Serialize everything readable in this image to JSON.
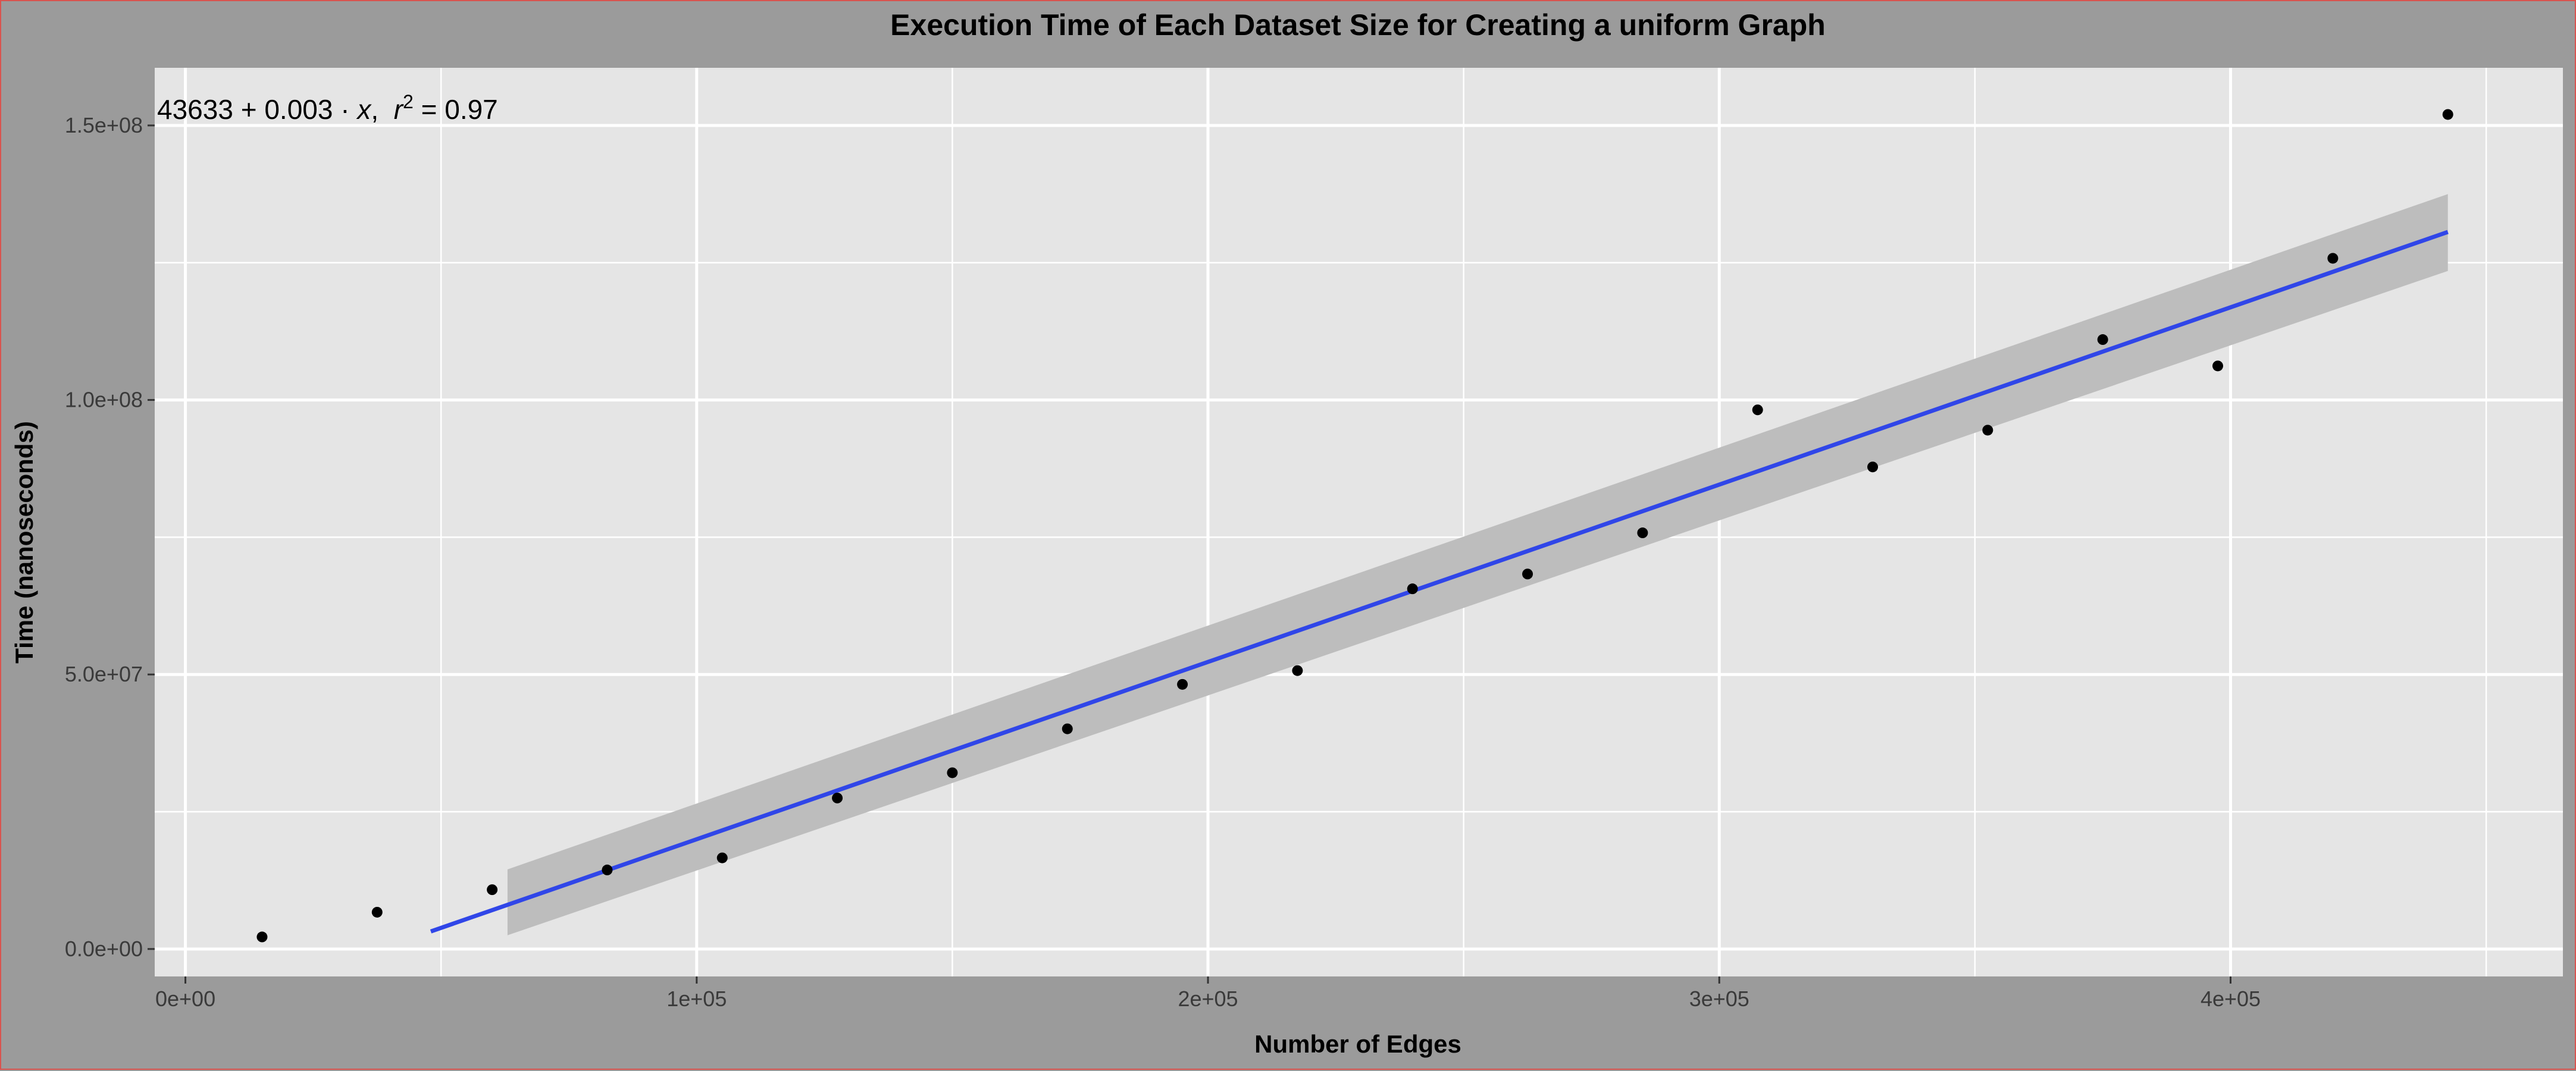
{
  "chart_data": {
    "type": "scatter",
    "title": "Execution Time of Each Dataset Size for Creating a uniform Graph",
    "xlabel": "Number of Edges",
    "ylabel": "Time (nanoseconds)",
    "xlim": [
      -6000,
      465000
    ],
    "ylim": [
      -5000000,
      160500000
    ],
    "x_ticks": [
      {
        "value": 0,
        "label": "0e+00"
      },
      {
        "value": 100000,
        "label": "1e+05"
      },
      {
        "value": 200000,
        "label": "2e+05"
      },
      {
        "value": 300000,
        "label": "3e+05"
      },
      {
        "value": 400000,
        "label": "4e+05"
      }
    ],
    "x_minor_ticks": [
      50000,
      150000,
      250000,
      350000,
      450000
    ],
    "y_ticks": [
      {
        "value": 0,
        "label": "0.0e+00"
      },
      {
        "value": 50000000,
        "label": "5.0e+07"
      },
      {
        "value": 100000000,
        "label": "1.0e+08"
      },
      {
        "value": 150000000,
        "label": "1.5e+08"
      }
    ],
    "y_minor_ticks": [
      25000000,
      75000000,
      125000000
    ],
    "grid": true,
    "points": [
      {
        "x": 15000,
        "y": 2200000
      },
      {
        "x": 37500,
        "y": 6700000
      },
      {
        "x": 60000,
        "y": 10800000
      },
      {
        "x": 82500,
        "y": 14400000
      },
      {
        "x": 105000,
        "y": 16600000
      },
      {
        "x": 127500,
        "y": 27500000
      },
      {
        "x": 150000,
        "y": 32100000
      },
      {
        "x": 172500,
        "y": 40100000
      },
      {
        "x": 195000,
        "y": 48200000
      },
      {
        "x": 217500,
        "y": 50700000
      },
      {
        "x": 240000,
        "y": 65600000
      },
      {
        "x": 262500,
        "y": 68300000
      },
      {
        "x": 285000,
        "y": 75800000
      },
      {
        "x": 307500,
        "y": 98200000
      },
      {
        "x": 330000,
        "y": 87800000
      },
      {
        "x": 352500,
        "y": 94500000
      },
      {
        "x": 375000,
        "y": 111000000
      },
      {
        "x": 397500,
        "y": 106200000
      },
      {
        "x": 420000,
        "y": 125800000
      },
      {
        "x": 442500,
        "y": 152000000
      }
    ],
    "fit_line": {
      "x": [
        48000,
        442500
      ],
      "y": [
        3200000,
        130600000
      ],
      "color": "#3046e8"
    },
    "confidence_band": {
      "upper": [
        {
          "x": 63000,
          "y": 14500000
        },
        {
          "x": 442500,
          "y": 137500000
        }
      ],
      "lower": [
        {
          "x": 63000,
          "y": 2500000
        },
        {
          "x": 442500,
          "y": 123500000
        }
      ],
      "color": "#bdbdbd"
    },
    "annotation": {
      "prefix": "43633 + 0.003 · ",
      "var": "x",
      "sep": ",  ",
      "r_symbol": "r",
      "r_exp": "2",
      "r_suffix": " = 0.97"
    },
    "colors": {
      "outer_background": "#9b9b9b",
      "panel_background": "#e5e5e5",
      "grid_line": "#ffffff",
      "point": "#000000"
    }
  }
}
